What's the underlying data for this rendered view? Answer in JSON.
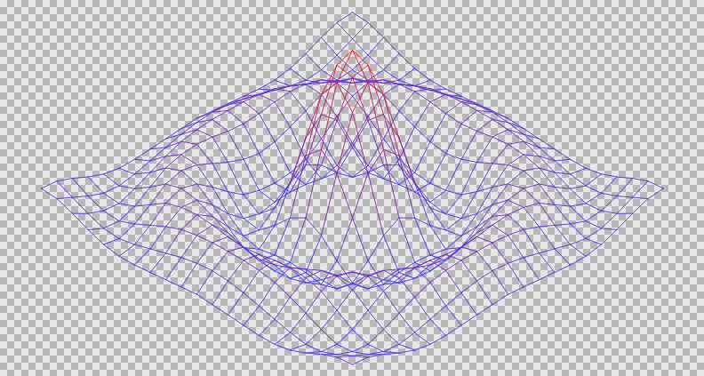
{
  "chart_data": {
    "type": "surface",
    "tick_labels": false,
    "colors": [
      "#3434ff",
      "#ff1010"
    ],
    "x": [
      -10,
      -9,
      -8,
      -7,
      -6,
      -5,
      -4,
      -3,
      -2,
      -1,
      0,
      1,
      2,
      3,
      4,
      5,
      6,
      7,
      8,
      9,
      10
    ],
    "y": [
      -10,
      -9,
      -8,
      -7,
      -6,
      -5,
      -4,
      -3,
      -2,
      -1,
      0,
      1,
      2,
      3,
      4,
      5,
      6,
      7,
      8,
      9,
      10
    ],
    "z": [
      [
        0.07,
        0.06,
        0.02,
        -0.03,
        -0.07,
        -0.09,
        -0.09,
        -0.08,
        -0.07,
        -0.06,
        -0.05,
        -0.06,
        -0.07,
        -0.08,
        -0.09,
        -0.09,
        -0.07,
        -0.03,
        0.02,
        0.06,
        0.07
      ],
      [
        0.06,
        0.01,
        -0.04,
        -0.08,
        -0.09,
        -0.07,
        -0.04,
        -0.01,
        0.02,
        0.04,
        0.05,
        0.04,
        0.02,
        -0.01,
        -0.04,
        -0.07,
        -0.09,
        -0.08,
        -0.04,
        0.01,
        0.06
      ],
      [
        0.02,
        -0.04,
        -0.08,
        -0.09,
        -0.05,
        0,
        0.05,
        0.09,
        0.11,
        0.12,
        0.12,
        0.12,
        0.11,
        0.09,
        0.05,
        0,
        -0.05,
        -0.09,
        -0.08,
        -0.04,
        0.02
      ],
      [
        -0.03,
        -0.08,
        -0.09,
        -0.05,
        0.02,
        0.09,
        0.12,
        0.13,
        0.12,
        0.1,
        0.09,
        0.1,
        0.12,
        0.13,
        0.12,
        0.09,
        0.02,
        -0.05,
        -0.09,
        -0.08,
        -0.03
      ],
      [
        -0.07,
        -0.09,
        -0.05,
        0.02,
        0.1,
        0.13,
        0.11,
        0.06,
        0.01,
        -0.03,
        -0.05,
        -0.03,
        0.01,
        0.06,
        0.11,
        0.13,
        0.1,
        0.02,
        -0.05,
        -0.09,
        -0.07
      ],
      [
        -0.09,
        -0.07,
        0,
        0.09,
        0.13,
        0.1,
        0.02,
        -0.07,
        -0.15,
        -0.18,
        -0.19,
        -0.18,
        -0.15,
        -0.07,
        0.02,
        0.1,
        0.13,
        0.09,
        0,
        -0.07,
        -0.09
      ],
      [
        -0.09,
        -0.04,
        0.05,
        0.12,
        0.11,
        0.02,
        -0.1,
        -0.19,
        -0.22,
        -0.2,
        -0.19,
        -0.2,
        -0.22,
        -0.19,
        -0.1,
        0.02,
        0.11,
        0.12,
        0.05,
        -0.04,
        -0.09
      ],
      [
        -0.08,
        -0.01,
        0.09,
        0.13,
        0.06,
        -0.07,
        -0.19,
        -0.21,
        -0.12,
        -0.01,
        0.05,
        -0.01,
        -0.12,
        -0.21,
        -0.19,
        -0.07,
        0.06,
        0.13,
        0.09,
        -0.01,
        -0.08
      ],
      [
        -0.07,
        0.02,
        0.11,
        0.12,
        0.01,
        -0.15,
        -0.22,
        -0.12,
        0.11,
        0.35,
        0.45,
        0.35,
        0.11,
        -0.12,
        -0.22,
        -0.15,
        0.01,
        0.12,
        0.11,
        0.02,
        -0.07
      ],
      [
        -0.06,
        0.04,
        0.12,
        0.1,
        -0.03,
        -0.18,
        -0.2,
        -0.01,
        0.35,
        0.7,
        0.84,
        0.7,
        0.35,
        -0.01,
        -0.2,
        -0.18,
        -0.03,
        0.1,
        0.12,
        0.04,
        -0.06
      ],
      [
        -0.05,
        0.05,
        0.12,
        0.09,
        -0.05,
        -0.19,
        -0.19,
        0.05,
        0.45,
        0.84,
        1,
        0.84,
        0.45,
        0.05,
        -0.19,
        -0.19,
        -0.05,
        0.09,
        0.12,
        0.05,
        -0.05
      ],
      [
        -0.06,
        0.04,
        0.12,
        0.1,
        -0.03,
        -0.18,
        -0.2,
        -0.01,
        0.35,
        0.7,
        0.84,
        0.7,
        0.35,
        -0.01,
        -0.2,
        -0.18,
        -0.03,
        0.1,
        0.12,
        0.04,
        -0.06
      ],
      [
        -0.07,
        0.02,
        0.11,
        0.12,
        0.01,
        -0.15,
        -0.22,
        -0.12,
        0.11,
        0.35,
        0.45,
        0.35,
        0.11,
        -0.12,
        -0.22,
        -0.15,
        0.01,
        0.12,
        0.11,
        0.02,
        -0.07
      ],
      [
        -0.08,
        -0.01,
        0.09,
        0.13,
        0.06,
        -0.07,
        -0.19,
        -0.21,
        -0.12,
        -0.01,
        0.05,
        -0.01,
        -0.12,
        -0.21,
        -0.19,
        -0.07,
        0.06,
        0.13,
        0.09,
        -0.01,
        -0.08
      ],
      [
        -0.09,
        -0.04,
        0.05,
        0.12,
        0.11,
        0.02,
        -0.1,
        -0.19,
        -0.22,
        -0.2,
        -0.19,
        -0.2,
        -0.22,
        -0.19,
        -0.1,
        0.02,
        0.11,
        0.12,
        0.05,
        -0.04,
        -0.09
      ],
      [
        -0.09,
        -0.07,
        0,
        0.09,
        0.13,
        0.1,
        0.02,
        -0.07,
        -0.15,
        -0.18,
        -0.19,
        -0.18,
        -0.15,
        -0.07,
        0.02,
        0.1,
        0.13,
        0.09,
        0,
        -0.07,
        -0.09
      ],
      [
        -0.07,
        -0.09,
        -0.05,
        0.02,
        0.1,
        0.13,
        0.11,
        0.06,
        0.01,
        -0.03,
        -0.05,
        -0.03,
        0.01,
        0.06,
        0.11,
        0.13,
        0.1,
        0.02,
        -0.05,
        -0.09,
        -0.07
      ],
      [
        -0.03,
        -0.08,
        -0.09,
        -0.05,
        0.02,
        0.09,
        0.12,
        0.13,
        0.12,
        0.1,
        0.09,
        0.1,
        0.12,
        0.13,
        0.12,
        0.09,
        0.02,
        -0.05,
        -0.09,
        -0.08,
        -0.03
      ],
      [
        0.02,
        -0.04,
        -0.08,
        -0.09,
        -0.05,
        0,
        0.05,
        0.09,
        0.11,
        0.12,
        0.12,
        0.12,
        0.11,
        0.09,
        0.05,
        0,
        -0.05,
        -0.09,
        -0.08,
        -0.04,
        0.02
      ],
      [
        0.06,
        0.01,
        -0.04,
        -0.08,
        -0.09,
        -0.07,
        -0.04,
        -0.01,
        0.02,
        0.04,
        0.05,
        0.04,
        0.02,
        -0.01,
        -0.04,
        -0.07,
        -0.09,
        -0.08,
        -0.04,
        0.01,
        0.06
      ],
      [
        0.07,
        0.06,
        0.02,
        -0.03,
        -0.07,
        -0.09,
        -0.09,
        -0.08,
        -0.07,
        -0.06,
        -0.05,
        -0.06,
        -0.07,
        -0.08,
        -0.09,
        -0.09,
        -0.07,
        -0.03,
        0.02,
        0.06,
        0.07
      ]
    ]
  }
}
